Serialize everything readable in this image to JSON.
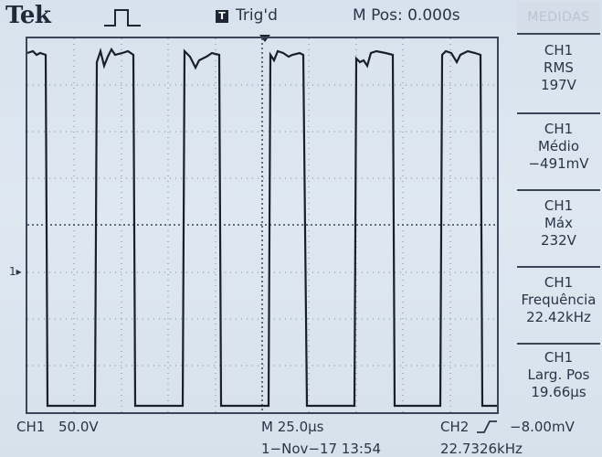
{
  "header": {
    "brand": "Tek",
    "trigger_icon": "T",
    "trigger_status": "Trig'd",
    "m_pos": "M Pos: 0.000s"
  },
  "channel_marker": "1▸",
  "measurements": {
    "title": "MEDIDAS",
    "items": [
      {
        "channel": "CH1",
        "name": "RMS",
        "value": "197V"
      },
      {
        "channel": "CH1",
        "name": "Médio",
        "value": "−491mV"
      },
      {
        "channel": "CH1",
        "name": "Máx",
        "value": "232V"
      },
      {
        "channel": "CH1",
        "name": "Frequência",
        "value": "22.42kHz"
      },
      {
        "channel": "CH1",
        "name": "Larg. Pos",
        "value": "19.66µs"
      }
    ]
  },
  "footer": {
    "ch1_label": "CH1",
    "ch1_scale": "50.0V",
    "timebase": "M 25.0µs",
    "ch2_label": "CH2",
    "trigger_level": "−8.00mV",
    "datetime": "1−Nov−17 13:54",
    "frequency": "22.7326kHz"
  },
  "colors": {
    "trace": "#1a1f2a",
    "grid": "#3a4558",
    "background": "#d9e3ee"
  },
  "icons": {
    "pulse": "pulse-icon",
    "trigger": "trigger-icon",
    "slope": "rising-edge-icon"
  }
}
